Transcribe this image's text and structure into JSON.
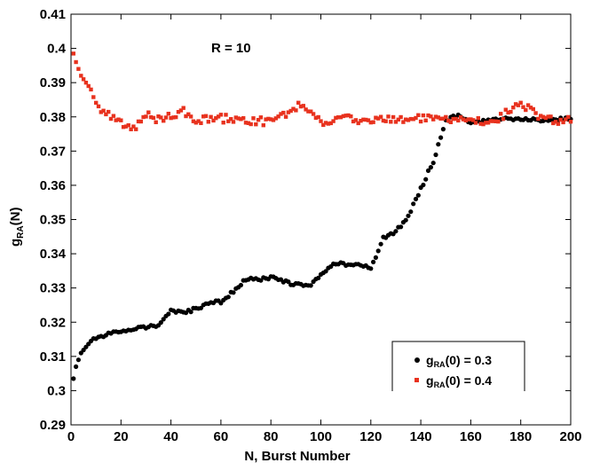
{
  "chart_data": {
    "type": "scatter",
    "title": "",
    "xlabel": "N,  Burst Number",
    "ylabel": {
      "main": "g",
      "sub": "RA",
      "rest": "(N)"
    },
    "xlim": [
      0,
      200
    ],
    "ylim": [
      0.29,
      0.41
    ],
    "x_ticks": [
      "0",
      "20",
      "40",
      "60",
      "80",
      "100",
      "120",
      "140",
      "160",
      "180",
      "200"
    ],
    "y_ticks": [
      "0.29",
      "0.3",
      "0.31",
      "0.32",
      "0.33",
      "0.34",
      "0.35",
      "0.36",
      "0.37",
      "0.38",
      "0.39",
      "0.4",
      "0.41"
    ],
    "grid": false,
    "legend_position": "bottom-right",
    "annotation": "R = 10",
    "series": [
      {
        "name": {
          "main": "g",
          "sub": "RA",
          "rest": "(0) = 0.3"
        },
        "color": "#000000",
        "marker": "circle",
        "anchors_x": [
          1,
          2,
          4,
          8,
          15,
          25,
          35,
          40,
          45,
          50,
          55,
          60,
          65,
          70,
          75,
          80,
          85,
          90,
          95,
          100,
          105,
          110,
          115,
          120,
          125,
          130,
          135,
          140,
          145,
          150,
          155,
          160,
          170,
          180,
          190,
          200
        ],
        "anchors_y": [
          0.3035,
          0.307,
          0.311,
          0.3145,
          0.3165,
          0.3182,
          0.319,
          0.3235,
          0.3225,
          0.324,
          0.3255,
          0.326,
          0.329,
          0.3325,
          0.3325,
          0.333,
          0.332,
          0.331,
          0.3305,
          0.3335,
          0.3375,
          0.337,
          0.337,
          0.3355,
          0.3445,
          0.3465,
          0.351,
          0.359,
          0.367,
          0.379,
          0.3805,
          0.378,
          0.3795,
          0.3795,
          0.379,
          0.3795
        ]
      },
      {
        "name": {
          "main": "g",
          "sub": "RA",
          "rest": "(0) = 0.4"
        },
        "color": "#e8321e",
        "marker": "square",
        "anchors_x": [
          1,
          2,
          3,
          4,
          5,
          6,
          8,
          10,
          12,
          15,
          20,
          25,
          30,
          35,
          40,
          45,
          50,
          60,
          70,
          80,
          92,
          100,
          110,
          120,
          140,
          150,
          160,
          170,
          180,
          190,
          200
        ],
        "anchors_y": [
          0.3985,
          0.396,
          0.394,
          0.392,
          0.391,
          0.39,
          0.388,
          0.385,
          0.382,
          0.3805,
          0.378,
          0.3765,
          0.381,
          0.379,
          0.38,
          0.3815,
          0.379,
          0.3795,
          0.379,
          0.3785,
          0.3835,
          0.3785,
          0.3795,
          0.379,
          0.3795,
          0.379,
          0.379,
          0.379,
          0.384,
          0.379,
          0.379
        ]
      }
    ]
  }
}
